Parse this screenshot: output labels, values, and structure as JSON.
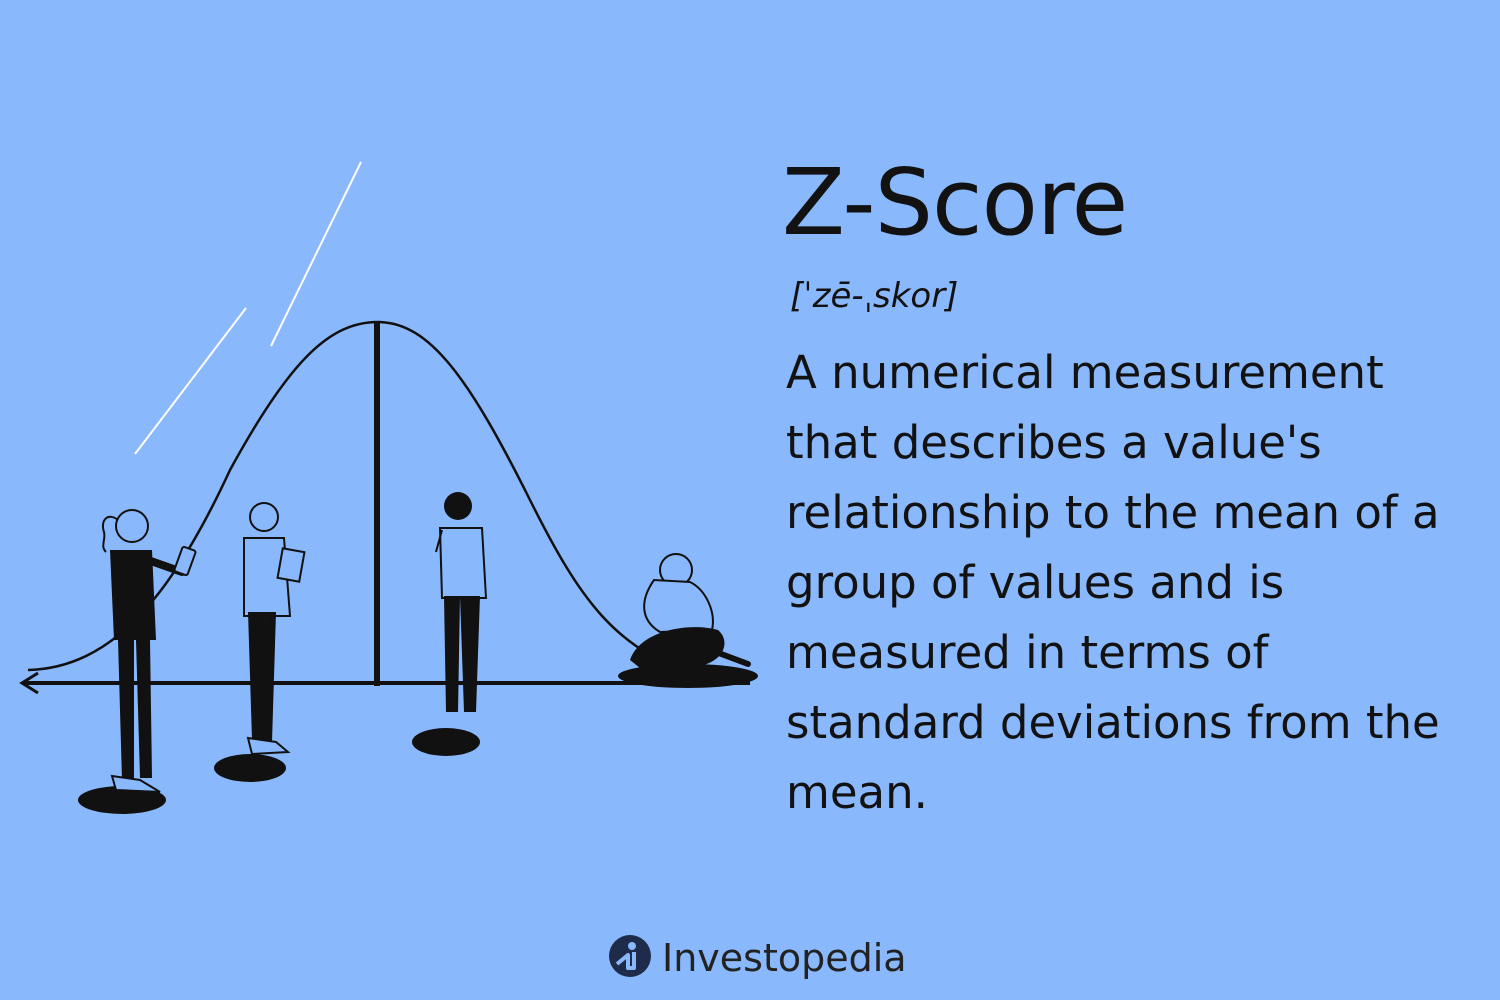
{
  "term": {
    "title": "Z-Score",
    "pronunciation": "[ˈzē-ˌskor]",
    "definition": "A numerical measurement that describes a value's relationship to the mean of a group of values and is measured in terms of standard deviations from the mean."
  },
  "brand": {
    "name": "Investopedia",
    "logo_icon": "investopedia-logo-icon"
  },
  "illustration": {
    "type": "bell-curve-with-people",
    "people_count": 4
  },
  "colors": {
    "background": "#8ab8fc",
    "ink": "#121212",
    "logo": "#1f2b4a"
  }
}
